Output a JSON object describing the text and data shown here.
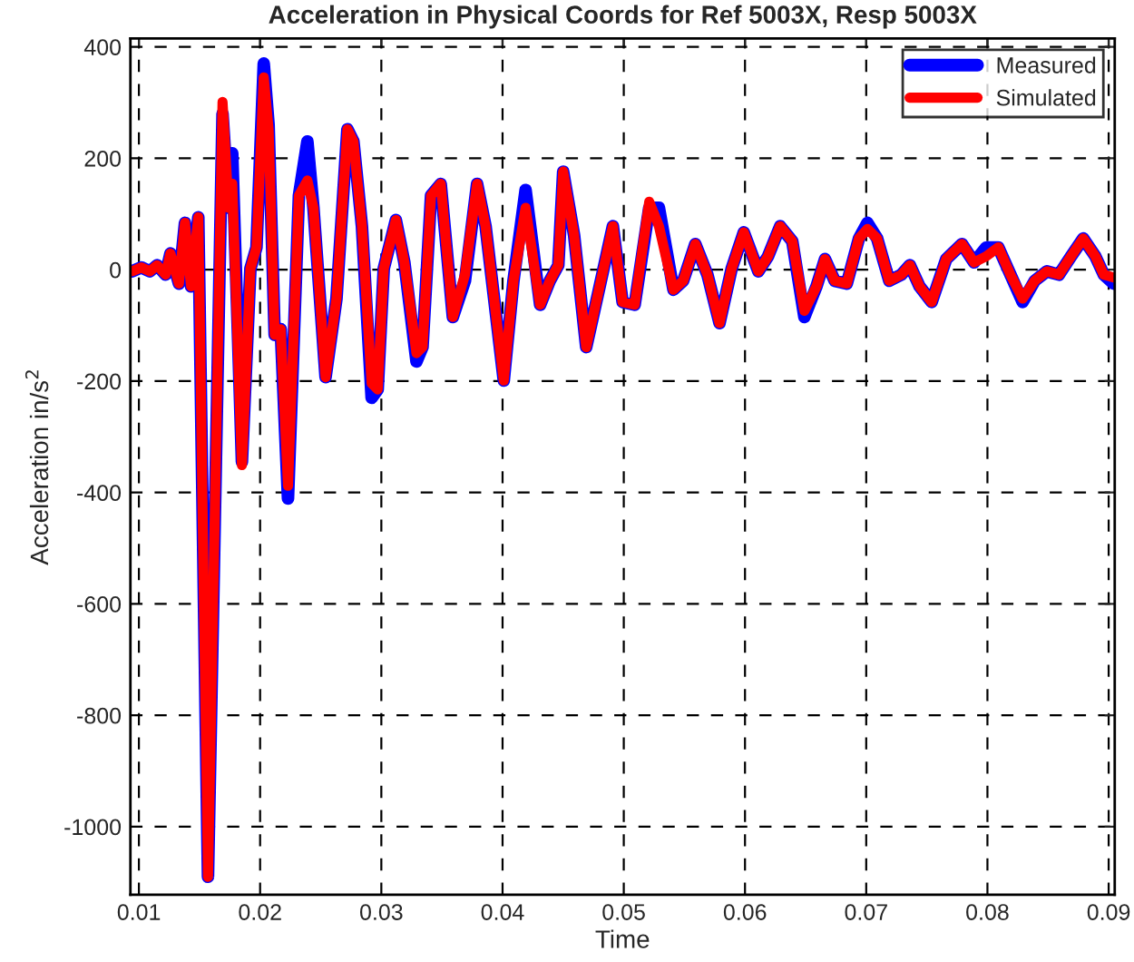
{
  "chart_data": {
    "type": "line",
    "title": "Acceleration in Physical Coords for Ref 5003X, Resp 5003X",
    "xlabel": "Time",
    "ylabel": "Acceleration in/s$^{2}$",
    "x": [
      0.00945,
      0.0102,
      0.0109,
      0.0115,
      0.0122,
      0.0126,
      0.0133,
      0.0138,
      0.0143,
      0.0149,
      0.0157,
      0.0169,
      0.0174,
      0.0177,
      0.0185,
      0.0192,
      0.0197,
      0.0203,
      0.0207,
      0.0212,
      0.0217,
      0.0223,
      0.0232,
      0.0239,
      0.0244,
      0.0254,
      0.0263,
      0.0272,
      0.0277,
      0.0284,
      0.0292,
      0.0297,
      0.0302,
      0.0312,
      0.0319,
      0.0329,
      0.0334,
      0.0341,
      0.0349,
      0.0359,
      0.0369,
      0.0379,
      0.0386,
      0.0401,
      0.0409,
      0.0419,
      0.0431,
      0.0439,
      0.0446,
      0.045,
      0.0459,
      0.0469,
      0.0479,
      0.0491,
      0.0499,
      0.0509,
      0.0521,
      0.0529,
      0.0541,
      0.0549,
      0.0559,
      0.0569,
      0.0579,
      0.0589,
      0.0599,
      0.0611,
      0.0619,
      0.0629,
      0.0639,
      0.0649,
      0.0659,
      0.0666,
      0.0674,
      0.0684,
      0.0694,
      0.0701,
      0.0709,
      0.0719,
      0.0729,
      0.0736,
      0.0744,
      0.0754,
      0.0766,
      0.0779,
      0.0789,
      0.0799,
      0.0809,
      0.0819,
      0.0829,
      0.0839,
      0.0849,
      0.0859,
      0.0869,
      0.0879,
      0.0889,
      0.0896,
      0.0904
    ],
    "series": [
      {
        "name": "Measured",
        "color": "#0000ff",
        "values": [
          -3,
          4,
          -3,
          8,
          -9,
          29,
          -25,
          84,
          -30,
          94,
          -1090,
          280,
          111,
          209,
          -345,
          2,
          40,
          370,
          260,
          -117,
          -107,
          -411,
          133,
          230,
          111,
          -193,
          -52,
          252,
          230,
          78,
          -230,
          -215,
          2,
          89,
          13,
          -165,
          -139,
          133,
          154,
          -85,
          -20,
          154,
          78,
          -199,
          -20,
          143,
          -63,
          -20,
          8,
          176,
          62,
          -139,
          -41,
          78,
          -58,
          -63,
          111,
          111,
          -36,
          -20,
          46,
          -9,
          -96,
          2,
          67,
          -3,
          24,
          78,
          51,
          -85,
          -30,
          19,
          -20,
          -25,
          56,
          84,
          56,
          -20,
          -9,
          8,
          -30,
          -58,
          19,
          46,
          13,
          40,
          40,
          -9,
          -58,
          -20,
          -3,
          -9,
          24,
          56,
          24,
          -9,
          -25
        ]
      },
      {
        "name": "Simulated",
        "color": "#ff0000",
        "values": [
          -3,
          4,
          -3,
          8,
          -9,
          29,
          -25,
          84,
          -30,
          94,
          -1090,
          301,
          111,
          154,
          -351,
          2,
          40,
          345,
          252,
          -117,
          -107,
          -388,
          133,
          160,
          111,
          -193,
          -52,
          252,
          230,
          78,
          -204,
          -215,
          2,
          89,
          13,
          -150,
          -139,
          133,
          154,
          -85,
          -9,
          154,
          78,
          -199,
          -20,
          111,
          -63,
          -20,
          8,
          176,
          62,
          -139,
          -41,
          78,
          -58,
          -63,
          122,
          78,
          -36,
          -20,
          46,
          -9,
          -96,
          2,
          67,
          -3,
          24,
          78,
          51,
          -74,
          -30,
          19,
          -20,
          -25,
          56,
          73,
          56,
          -20,
          -9,
          8,
          -30,
          -58,
          19,
          46,
          13,
          24,
          40,
          -9,
          -52,
          -20,
          -3,
          -9,
          24,
          56,
          24,
          -9,
          -14
        ]
      }
    ],
    "xlim": [
      0.0093,
      0.0905
    ],
    "ylim": [
      -1122,
      415
    ],
    "xticks": [
      0.01,
      0.02,
      0.03,
      0.04,
      0.05,
      0.06,
      0.07,
      0.08,
      0.09
    ],
    "yticks": [
      -1000,
      -800,
      -600,
      -400,
      -200,
      0,
      200,
      400
    ],
    "grid": true,
    "legend": "top right",
    "line_style": "solid"
  }
}
